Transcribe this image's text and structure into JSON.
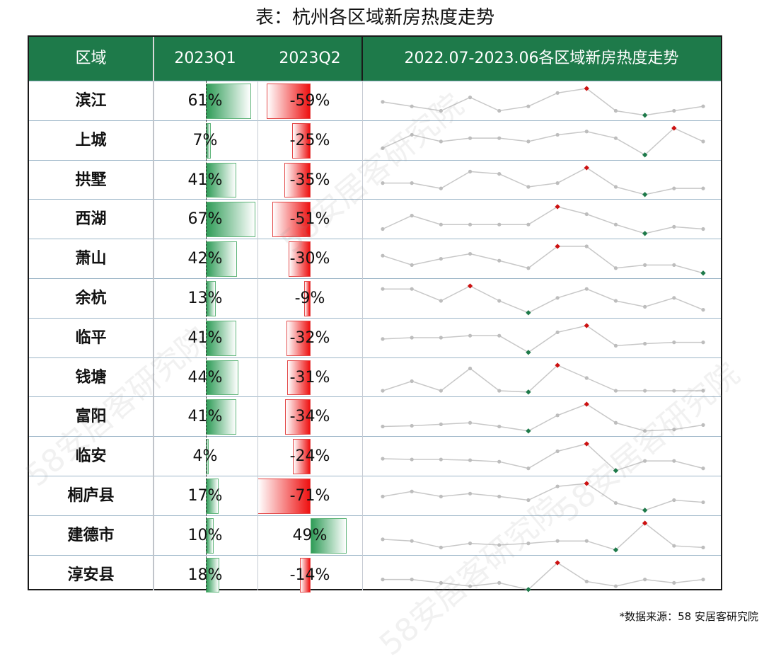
{
  "title": "表：杭州各区域新房热度走势",
  "footnote": "*数据来源：58 安居客研究院",
  "watermark": "58安居客研究院",
  "colors": {
    "header_bg": "#1e7a4a",
    "positive_bar": "#2f9c57",
    "negative_bar": "#ee1111",
    "spark_line": "#c8c8c8",
    "spark_point": "#bdbdbd",
    "spark_max": "#cc1111",
    "spark_min": "#1e7a4a"
  },
  "header": {
    "col_district": "区域",
    "col_q1": "2023Q1",
    "col_q2": "2023Q2",
    "col_trend": "2022.07-2023.06各区域新房热度走势"
  },
  "chart_data": {
    "type": "table",
    "columns": [
      "区域",
      "2023Q1",
      "2023Q2",
      "2022.07-2023.06各区域新房热度走势"
    ],
    "rows": [
      {
        "district": "滨江",
        "q1": 61,
        "q2": -59,
        "trend": [
          3,
          2,
          1,
          4,
          1,
          2,
          5,
          6,
          1,
          0,
          1,
          2
        ]
      },
      {
        "district": "上城",
        "q1": 7,
        "q2": -25,
        "trend": [
          1,
          3,
          2,
          2.5,
          2.5,
          2,
          3,
          3.5,
          2.5,
          0,
          4,
          2
        ]
      },
      {
        "district": "拱墅",
        "q1": 41,
        "q2": -35,
        "trend": [
          1,
          1,
          0.3,
          2.5,
          2.2,
          0.5,
          1,
          3,
          0.5,
          -0.5,
          0.3,
          0.3
        ]
      },
      {
        "district": "西湖",
        "q1": 67,
        "q2": -51,
        "trend": [
          0,
          1.8,
          0.6,
          0.6,
          0.6,
          0.6,
          3,
          2,
          0.6,
          -0.6,
          0.3,
          0
        ]
      },
      {
        "district": "萧山",
        "q1": 42,
        "q2": -30,
        "trend": [
          2,
          0.5,
          1.5,
          2.3,
          1.2,
          0,
          3.5,
          3.5,
          0,
          0.5,
          0.5,
          -0.8
        ]
      },
      {
        "district": "余杭",
        "q1": 13,
        "q2": -9,
        "trend": [
          3,
          3,
          1,
          3.5,
          1,
          -1,
          1.5,
          3,
          1,
          0,
          1.5,
          -0.5
        ]
      },
      {
        "district": "临平",
        "q1": 41,
        "q2": -32,
        "trend": [
          1,
          1.2,
          1.2,
          1.5,
          1.5,
          -1,
          2,
          3,
          0,
          0.3,
          0.5,
          0.5
        ]
      },
      {
        "district": "钱塘",
        "q1": 44,
        "q2": -31,
        "trend": [
          0,
          1.5,
          0,
          3.5,
          0,
          -0.2,
          4,
          2,
          0,
          0,
          0,
          0
        ]
      },
      {
        "district": "富阳",
        "q1": 41,
        "q2": -34,
        "trend": [
          0,
          0.1,
          0.3,
          0.5,
          0,
          -0.6,
          1.5,
          3,
          0.5,
          -0.6,
          -0.4,
          0.2
        ]
      },
      {
        "district": "临安",
        "q1": 4,
        "q2": -24,
        "trend": [
          1,
          0.9,
          0.9,
          0.8,
          0.6,
          -0.3,
          2,
          3,
          -0.6,
          0.7,
          0.7,
          -0.3
        ]
      },
      {
        "district": "桐庐县",
        "q1": 17,
        "q2": -71,
        "trend": [
          0.8,
          1.5,
          0.8,
          1.2,
          0.8,
          0.3,
          2.2,
          2.6,
          -0.1,
          -1.1,
          0.3,
          0
        ]
      },
      {
        "district": "建德市",
        "q1": 10,
        "q2": 49,
        "trend": [
          1,
          0.8,
          0,
          0.5,
          0.3,
          0.5,
          0.8,
          0.8,
          -0.3,
          3,
          0.2,
          0
        ]
      },
      {
        "district": "淳安县",
        "q1": 18,
        "q2": -14,
        "trend": [
          0.5,
          0.5,
          0,
          -0.5,
          0,
          -1,
          3,
          0.2,
          -0.5,
          0.5,
          0,
          0.5
        ]
      }
    ]
  }
}
